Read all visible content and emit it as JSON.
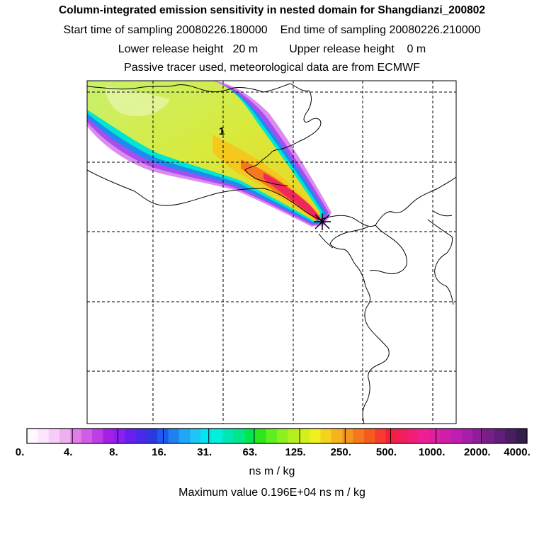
{
  "header": {
    "title": "Column-integrated emission sensitivity in nested domain for Shangdianzi_200802",
    "start_label": "Start time of sampling 20080226.180000",
    "end_label": "End time of sampling 20080226.210000",
    "lower_label": "Lower release height   20 m",
    "upper_label": "Upper release height    0 m",
    "tracer_label": "Passive tracer used, meteorological data are from ECMWF"
  },
  "map": {
    "contour_label": "1",
    "release_site_marker": "star-cross"
  },
  "colorbar": {
    "tick_labels": [
      "0.",
      "4.",
      "8.",
      "16.",
      "31.",
      "63.",
      "125.",
      "250.",
      "500.",
      "1000.",
      "2000.",
      "4000."
    ],
    "colors": [
      "#fff8ff",
      "#fde6fd",
      "#f8ccf8",
      "#f0b0f0",
      "#e07de8",
      "#d15ce6",
      "#bf3de6",
      "#a51fe6",
      "#8a1ff0",
      "#6a1ff0",
      "#4a2ae8",
      "#2a3ae0",
      "#1f5af0",
      "#1f80f0",
      "#1fa6f5",
      "#1fc6f5",
      "#00e6f0",
      "#00f0dc",
      "#00e6b4",
      "#00e68c",
      "#00e650",
      "#2ee61e",
      "#5ef01e",
      "#8cf01e",
      "#b4f01e",
      "#d2f01e",
      "#f0f01e",
      "#f5d21e",
      "#f5b41e",
      "#f5961e",
      "#f5781e",
      "#f55a1e",
      "#f53c2e",
      "#f51e3c",
      "#f01e5a",
      "#f01e78",
      "#f01e96",
      "#e01ea0",
      "#d01eaa",
      "#c01eb0",
      "#a81ea8",
      "#901e98",
      "#781e88",
      "#601e78",
      "#481e60",
      "#341e4c"
    ],
    "unit_label": "ns m / kg",
    "max_label": "Maximum value  0.196E+04 ns m / kg"
  },
  "legend_colors": {
    "coastline": "#000000",
    "grid": "#000000"
  }
}
